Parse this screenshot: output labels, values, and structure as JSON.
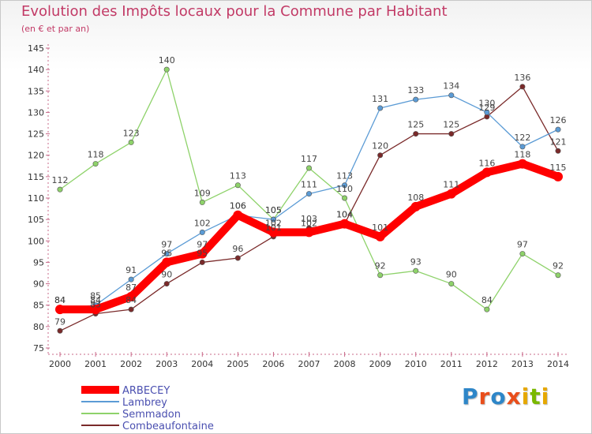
{
  "title": "Evolution des Impôts locaux pour la Commune par Habitant",
  "subtitle": "(en € et par an)",
  "logo": {
    "text": "Proxiti",
    "colors": [
      "#2e86c8",
      "#e94e1b",
      "#2e86c8",
      "#e94e1b",
      "#e6a800",
      "#7ab800",
      "#e6a800"
    ]
  },
  "chart_data": {
    "type": "line",
    "categories": [
      "2000",
      "2001",
      "2002",
      "2003",
      "2004",
      "2005",
      "2006",
      "2007",
      "2008",
      "2009",
      "2010",
      "2011",
      "2012",
      "2013",
      "2014"
    ],
    "ylim": [
      75,
      145
    ],
    "yticks": [
      75,
      80,
      85,
      90,
      95,
      100,
      105,
      110,
      115,
      120,
      125,
      130,
      135,
      140,
      145
    ],
    "grid": false,
    "legend_position": "bottom-left",
    "series": [
      {
        "name": "Combeaufontaine",
        "color": "#7a2a2a",
        "values": [
          79,
          83,
          84,
          90,
          95,
          96,
          101,
          103,
          104,
          120,
          125,
          125,
          129,
          136,
          121
        ]
      },
      {
        "name": "Semmadon",
        "color": "#8ed26a",
        "values": [
          112,
          118,
          123,
          140,
          109,
          113,
          105,
          117,
          110,
          92,
          93,
          90,
          84,
          97,
          92
        ]
      },
      {
        "name": "Lambrey",
        "color": "#5b9bd5",
        "values": [
          84,
          85,
          91,
          97,
          102,
          106,
          105,
          111,
          113,
          131,
          133,
          134,
          130,
          122,
          126
        ]
      },
      {
        "name": "ARBECEY",
        "color": "#ff0000",
        "values": [
          84,
          84,
          87,
          95,
          97,
          106,
          102,
          102,
          104,
          101,
          108,
          111,
          116,
          118,
          115
        ]
      }
    ]
  }
}
